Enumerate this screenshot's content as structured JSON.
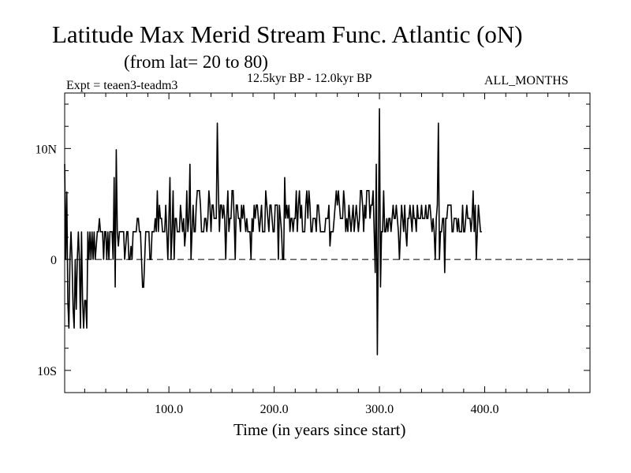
{
  "header": {
    "title": "Latitude Max Merid Stream Func. Atlantic (oN)",
    "subtitle": "(from lat= 20 to 80)",
    "experiment": "Expt = teaen3-teadm3",
    "period": "12.5kyr BP - 12.0kyr BP",
    "months": "ALL_MONTHS"
  },
  "chart_data": {
    "type": "line",
    "title": "Latitude Max Merid Stream Func. Atlantic (oN)",
    "subtitle": "(from lat= 20 to 80)",
    "xlabel": "Time (in years since start)",
    "ylabel": "",
    "xlim": [
      1,
      500
    ],
    "ylim": [
      -12,
      15
    ],
    "x_ticks": [
      {
        "value": 100,
        "label": "100.0"
      },
      {
        "value": 200,
        "label": "200.0"
      },
      {
        "value": 300,
        "label": "300.0"
      },
      {
        "value": 400,
        "label": "400.0"
      }
    ],
    "y_ticks": [
      {
        "value": 10,
        "label": "10N"
      },
      {
        "value": 0,
        "label": "0"
      },
      {
        "value": -10,
        "label": "10S"
      }
    ],
    "reference_line": {
      "value": 0,
      "style": "dashed"
    },
    "series": [
      {
        "name": "teaen3-teadm3",
        "color": "#000000",
        "x_start": 1,
        "x_step": 1,
        "values": [
          8.6,
          0,
          6.1,
          -3.8,
          -6.2,
          0,
          2.5,
          0,
          -4.5,
          -6.2,
          0,
          -4.5,
          0,
          2.5,
          0,
          -6.2,
          2.5,
          -3.7,
          -6.2,
          -3.7,
          -3.7,
          -6.2,
          2.5,
          0,
          2.5,
          0,
          2.5,
          0,
          2.5,
          0,
          1.2,
          2.5,
          2.5,
          3.7,
          2.5,
          2.5,
          2.5,
          0,
          2.5,
          2.5,
          0,
          2.5,
          0,
          2.5,
          2.5,
          2.5,
          0,
          7.4,
          -2.5,
          9.9,
          2.5,
          1.2,
          2.5,
          2.5,
          2.5,
          2.5,
          2.5,
          0,
          1.2,
          2.5,
          2.5,
          0,
          0,
          1.2,
          0,
          2.5,
          2.5,
          2.5,
          2.5,
          3.7,
          3.7,
          2.5,
          2.5,
          0,
          -2.5,
          -2.5,
          0,
          2.5,
          2.5,
          2.5,
          2.5,
          0,
          0,
          2.5,
          2.5,
          2.5,
          3.7,
          2.5,
          6.2,
          2.5,
          4.9,
          3.7,
          3.7,
          2.5,
          2.5,
          2.5,
          4.9,
          2.5,
          0,
          3.7,
          7.4,
          0,
          2.5,
          6.2,
          0,
          3.7,
          3.7,
          2.5,
          2.5,
          2.5,
          4.9,
          3.7,
          2.5,
          3.7,
          1.2,
          2.5,
          6.2,
          2.5,
          3.7,
          8.6,
          0,
          2.5,
          4.9,
          2.5,
          2.5,
          4.9,
          6.2,
          6.2,
          6.2,
          4.9,
          2.5,
          2.5,
          2.5,
          3.7,
          3.7,
          2.5,
          3.7,
          6.2,
          4.9,
          2.5,
          4.9,
          4.9,
          3.7,
          3.7,
          3.7,
          12.3,
          6.2,
          2.5,
          4.9,
          4.9,
          3.7,
          4.9,
          3.7,
          0,
          3.7,
          6.2,
          2.5,
          3.7,
          3.7,
          6.2,
          6.2,
          3.7,
          0,
          4.9,
          4.9,
          3.7,
          3.7,
          2.5,
          4.9,
          3.7,
          4.9,
          3.7,
          2.5,
          3.7,
          2.5,
          2.5,
          2.5,
          0,
          3.7,
          2.5,
          4.9,
          3.7,
          4.9,
          4.9,
          3.7,
          2.5,
          3.7,
          4.9,
          2.5,
          2.5,
          2.5,
          6.2,
          4.9,
          3.7,
          2.5,
          4.9,
          4.9,
          3.7,
          2.5,
          2.5,
          4.9,
          4.9,
          4.9,
          0,
          4.9,
          3.7,
          2.5,
          0,
          0,
          7.4,
          3.7,
          4.9,
          3.7,
          4.9,
          2.5,
          3.7,
          3.7,
          2.5,
          3.7,
          3.7,
          6.2,
          2.5,
          4.9,
          6.2,
          3.7,
          4.9,
          2.5,
          2.5,
          2.5,
          4.9,
          6.2,
          3.7,
          6.2,
          4.9,
          2.5,
          2.5,
          3.7,
          3.7,
          3.7,
          2.5,
          4.9,
          4.9,
          3.7,
          2.5,
          2.5,
          2.5,
          2.5,
          2.5,
          3.7,
          3.7,
          3.7,
          4.9,
          1.2,
          2.5,
          2.5,
          2.5,
          3.7,
          4.9,
          6.2,
          4.9,
          6.2,
          4.9,
          3.7,
          3.7,
          3.7,
          6.2,
          4.9,
          2.5,
          3.7,
          2.5,
          4.9,
          3.7,
          2.5,
          3.7,
          4.9,
          2.5,
          3.7,
          4.9,
          3.7,
          2.5,
          3.7,
          6.2,
          6.2,
          4.9,
          2.5,
          4.9,
          3.7,
          6.2,
          6.2,
          6.2,
          3.7,
          4.9,
          4.9,
          6.2,
          2.5,
          -1.2,
          8.6,
          -8.6,
          2.5,
          13.6,
          -2.5,
          2.5,
          2.5,
          6.2,
          2.5,
          2.5,
          3.7,
          2.5,
          3.7,
          3.7,
          2.5,
          3.7,
          4.9,
          3.7,
          3.7,
          4.9,
          3.7,
          2.5,
          0,
          2.5,
          4.9,
          3.7,
          2.5,
          4.9,
          2.5,
          1.2,
          3.7,
          3.7,
          4.9,
          3.7,
          2.5,
          4.9,
          3.7,
          3.7,
          2.5,
          4.9,
          3.7,
          3.7,
          3.7,
          4.9,
          3.7,
          3.7,
          3.7,
          4.9,
          3.7,
          3.7,
          4.9,
          4.9,
          3.7,
          2.5,
          3.7,
          2.5,
          0,
          3.7,
          4.9,
          12.3,
          0,
          2.5,
          2.5,
          3.7,
          3.7,
          -1.2,
          3.7,
          3.7,
          4.9,
          4.9,
          4.9,
          4.9,
          2.5,
          2.5,
          3.7,
          3.7,
          3.7,
          2.5,
          3.7,
          2.5,
          2.5,
          2.5,
          4.9,
          2.5,
          2.5,
          3.7,
          4.9,
          3.7,
          3.7,
          3.7,
          2.5,
          3.7,
          6.2,
          2.5,
          4.9,
          0,
          2.5,
          4.9,
          3.7,
          2.5,
          2.5
        ]
      }
    ]
  }
}
